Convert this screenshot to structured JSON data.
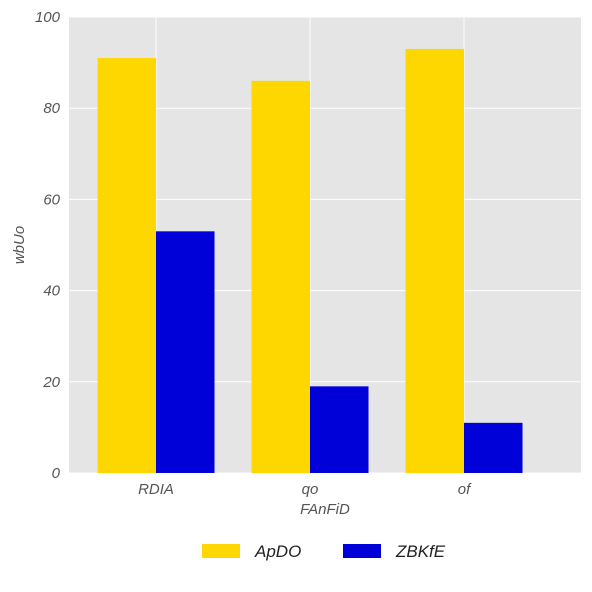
{
  "chart_data": {
    "type": "bar",
    "categories": [
      "RDIA",
      "qo",
      "of"
    ],
    "series": [
      {
        "name": "ApDO",
        "values": [
          91,
          86,
          93
        ],
        "color": "#FFD700"
      },
      {
        "name": "ZBKfE",
        "values": [
          53,
          19,
          11
        ],
        "color": "#0000D8"
      }
    ],
    "xlabel": "FAnFiD",
    "ylabel": "wbUo",
    "ylim": [
      0,
      100
    ],
    "yticks": [
      0,
      20,
      40,
      60,
      80,
      100
    ],
    "grid": true,
    "legend_position": "bottom-center",
    "background": "#E5E5E5",
    "grid_color": "#FFFFFF"
  }
}
